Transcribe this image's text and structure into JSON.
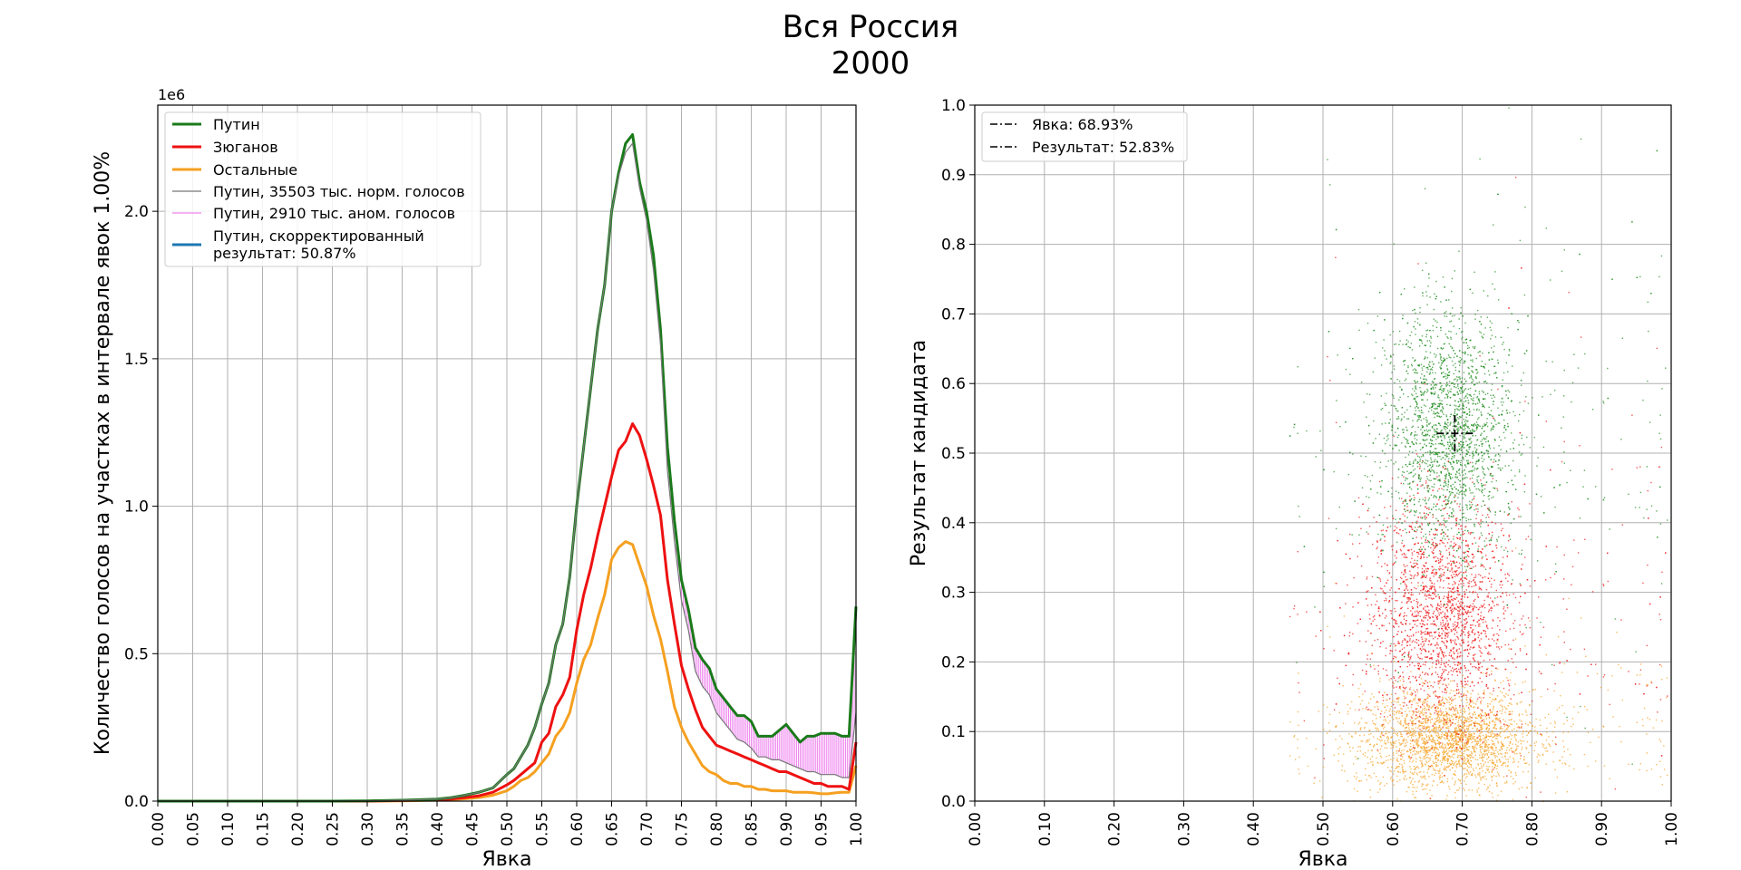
{
  "figure": {
    "title_line1": "Вся Россия",
    "title_line2": "2000"
  },
  "chart_data": [
    {
      "type": "line",
      "xlabel": "Явка",
      "ylabel": "Количество голосов на участках в интервале явок 1.00%",
      "y_multiplier": "1e6",
      "xlim": [
        0,
        1
      ],
      "ylim": [
        0,
        2.36
      ],
      "x_ticks": [
        "0.00",
        "0.05",
        "0.10",
        "0.15",
        "0.20",
        "0.25",
        "0.30",
        "0.35",
        "0.40",
        "0.45",
        "0.50",
        "0.55",
        "0.60",
        "0.65",
        "0.70",
        "0.75",
        "0.80",
        "0.85",
        "0.90",
        "0.95",
        "1.00"
      ],
      "y_ticks": [
        "0.0",
        "0.5",
        "1.0",
        "1.5",
        "2.0"
      ],
      "grid": true,
      "legend_position": "top-left",
      "x": [
        0.0,
        0.05,
        0.1,
        0.15,
        0.2,
        0.25,
        0.3,
        0.35,
        0.4,
        0.42,
        0.44,
        0.46,
        0.48,
        0.5,
        0.51,
        0.52,
        0.53,
        0.54,
        0.55,
        0.56,
        0.57,
        0.58,
        0.59,
        0.6,
        0.61,
        0.62,
        0.63,
        0.64,
        0.65,
        0.66,
        0.67,
        0.68,
        0.69,
        0.7,
        0.71,
        0.72,
        0.73,
        0.74,
        0.75,
        0.76,
        0.77,
        0.78,
        0.79,
        0.8,
        0.81,
        0.82,
        0.83,
        0.84,
        0.85,
        0.86,
        0.87,
        0.88,
        0.89,
        0.9,
        0.91,
        0.92,
        0.93,
        0.94,
        0.95,
        0.96,
        0.97,
        0.98,
        0.99,
        1.0
      ],
      "series": [
        {
          "name": "Путин",
          "color": "#1a7a1a",
          "values": [
            0,
            0,
            0,
            0,
            0,
            0,
            0.001,
            0.003,
            0.007,
            0.012,
            0.02,
            0.03,
            0.045,
            0.09,
            0.11,
            0.15,
            0.19,
            0.25,
            0.33,
            0.4,
            0.53,
            0.6,
            0.76,
            1.0,
            1.2,
            1.4,
            1.6,
            1.75,
            2.0,
            2.13,
            2.23,
            2.26,
            2.1,
            2.0,
            1.85,
            1.6,
            1.2,
            0.95,
            0.75,
            0.65,
            0.52,
            0.48,
            0.45,
            0.38,
            0.35,
            0.32,
            0.29,
            0.29,
            0.27,
            0.22,
            0.22,
            0.22,
            0.24,
            0.26,
            0.23,
            0.2,
            0.22,
            0.22,
            0.23,
            0.23,
            0.23,
            0.22,
            0.22,
            0.66
          ]
        },
        {
          "name": "Зюганов",
          "color": "#ee1111",
          "values": [
            0,
            0,
            0,
            0,
            0,
            0,
            0,
            0.002,
            0.004,
            0.007,
            0.012,
            0.018,
            0.03,
            0.055,
            0.07,
            0.09,
            0.11,
            0.13,
            0.2,
            0.23,
            0.32,
            0.36,
            0.42,
            0.58,
            0.7,
            0.79,
            0.9,
            1.0,
            1.1,
            1.19,
            1.22,
            1.28,
            1.24,
            1.16,
            1.07,
            0.97,
            0.75,
            0.6,
            0.46,
            0.38,
            0.31,
            0.25,
            0.22,
            0.19,
            0.18,
            0.17,
            0.16,
            0.15,
            0.14,
            0.13,
            0.12,
            0.11,
            0.1,
            0.1,
            0.09,
            0.08,
            0.07,
            0.06,
            0.06,
            0.05,
            0.05,
            0.05,
            0.04,
            0.2
          ]
        },
        {
          "name": "Остальные",
          "color": "#f5a020",
          "values": [
            0,
            0,
            0,
            0,
            0,
            0,
            0,
            0.001,
            0.003,
            0.005,
            0.008,
            0.012,
            0.02,
            0.035,
            0.05,
            0.07,
            0.08,
            0.1,
            0.13,
            0.16,
            0.22,
            0.25,
            0.3,
            0.4,
            0.48,
            0.53,
            0.62,
            0.7,
            0.82,
            0.86,
            0.88,
            0.87,
            0.8,
            0.73,
            0.63,
            0.55,
            0.44,
            0.32,
            0.25,
            0.2,
            0.16,
            0.12,
            0.1,
            0.09,
            0.07,
            0.06,
            0.06,
            0.05,
            0.05,
            0.04,
            0.04,
            0.035,
            0.035,
            0.035,
            0.03,
            0.03,
            0.03,
            0.028,
            0.025,
            0.025,
            0.028,
            0.03,
            0.03,
            0.12
          ]
        },
        {
          "name": "Путин, 35503 тыс. норм. голосов",
          "color": "#777777",
          "values": [
            0,
            0,
            0,
            0,
            0,
            0,
            0.001,
            0.003,
            0.007,
            0.012,
            0.02,
            0.03,
            0.045,
            0.09,
            0.11,
            0.15,
            0.19,
            0.25,
            0.33,
            0.4,
            0.53,
            0.6,
            0.76,
            1.0,
            1.2,
            1.4,
            1.6,
            1.75,
            2.0,
            2.12,
            2.2,
            2.23,
            2.08,
            1.97,
            1.8,
            1.55,
            1.12,
            0.88,
            0.68,
            0.58,
            0.44,
            0.39,
            0.36,
            0.3,
            0.27,
            0.24,
            0.21,
            0.2,
            0.18,
            0.15,
            0.15,
            0.14,
            0.14,
            0.13,
            0.12,
            0.11,
            0.1,
            0.1,
            0.09,
            0.09,
            0.09,
            0.08,
            0.08,
            0.3
          ]
        }
      ],
      "anomaly_series": {
        "name": "Путин, 2910 тыс. аном. голосов",
        "color": "#ee82ee"
      },
      "corrected_series": {
        "name": "Путин, скорректированный результат: 50.87%",
        "name_line1": "Путин, скорректированный",
        "name_line2": "результат: 50.87%",
        "color": "#1f77b4"
      }
    },
    {
      "type": "scatter",
      "xlabel": "Явка",
      "ylabel": "Результат кандидата",
      "xlim": [
        0,
        1
      ],
      "ylim": [
        0,
        1
      ],
      "x_ticks": [
        "0.00",
        "0.10",
        "0.20",
        "0.30",
        "0.40",
        "0.50",
        "0.60",
        "0.70",
        "0.80",
        "0.90",
        "1.00"
      ],
      "y_ticks": [
        "0.0",
        "0.1",
        "0.2",
        "0.3",
        "0.4",
        "0.5",
        "0.6",
        "0.7",
        "0.8",
        "0.9",
        "1.0"
      ],
      "grid": true,
      "legend_position": "top-left",
      "legend": [
        "Явка: 68.93%",
        "Результат: 52.83%"
      ],
      "mean_turnout": 0.6893,
      "mean_result": 0.5283,
      "clusters": [
        {
          "name": "Путин",
          "color": "#1a8a1a",
          "cx": 0.68,
          "cy": 0.53,
          "sx": 0.045,
          "sy": 0.085
        },
        {
          "name": "Зюганов",
          "color": "#ee1111",
          "cx": 0.67,
          "cy": 0.27,
          "sx": 0.05,
          "sy": 0.08
        },
        {
          "name": "Остальные",
          "color": "#f5a020",
          "cx": 0.68,
          "cy": 0.09,
          "sx": 0.06,
          "sy": 0.035
        }
      ]
    }
  ]
}
